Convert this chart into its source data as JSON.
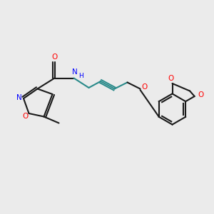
{
  "bg": "#ebebeb",
  "bond_color": "#1a1a1a",
  "N_color": "#0000ff",
  "O_color": "#ff0000",
  "C_color": "#1a1a1a",
  "alkyne_color": "#2a8a8a",
  "lw": 1.5,
  "xlim": [
    0,
    10
  ],
  "ylim": [
    0,
    10
  ],
  "figsize": [
    3.0,
    3.0
  ],
  "dpi": 100
}
